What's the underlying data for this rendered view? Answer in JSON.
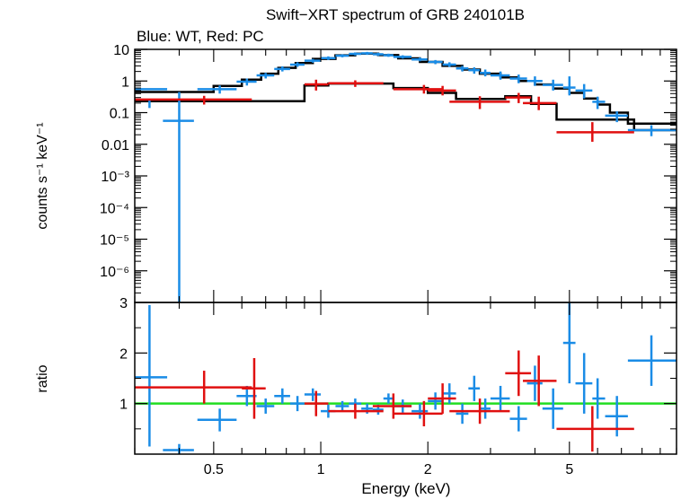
{
  "header": {
    "title": "Swift−XRT spectrum of GRB 240101B",
    "subtitle": "Blue: WT, Red: PC"
  },
  "colors": {
    "wt": "#1a8ce6",
    "pc": "#e01010",
    "model": "#000000",
    "unity": "#22dd22"
  },
  "chart_data": [
    {
      "type": "scatter",
      "panel": "spectrum",
      "xlabel": "Energy (keV)",
      "ylabel": "counts s⁻¹ keV⁻¹",
      "xscale": "log",
      "yscale": "log",
      "xlim": [
        0.3,
        10
      ],
      "ylim": [
        1e-07,
        10
      ],
      "ytick_labels": [
        "10",
        "1",
        "0.1",
        "0.01",
        "10⁻³",
        "10⁻⁴",
        "10⁻⁵",
        "10⁻⁶"
      ],
      "series": [
        {
          "name": "WT",
          "color": "#1a8ce6",
          "points": [
            [
              0.33,
              0.55,
              0.3,
              0.37,
              0.14,
              0.25
            ],
            [
              0.4,
              0.055,
              0.36,
              0.44,
              0.0,
              0.45
            ],
            [
              0.52,
              0.55,
              0.45,
              0.58,
              0.4,
              0.72
            ],
            [
              0.62,
              0.95,
              0.58,
              0.66,
              0.72,
              1.2
            ],
            [
              0.7,
              1.5,
              0.66,
              0.74,
              1.2,
              1.8
            ],
            [
              0.78,
              2.4,
              0.74,
              0.82,
              2.0,
              2.9
            ],
            [
              0.86,
              3.3,
              0.82,
              0.9,
              2.8,
              3.9
            ],
            [
              0.95,
              4.4,
              0.9,
              1.0,
              3.8,
              5.0
            ],
            [
              1.05,
              5.3,
              1.0,
              1.1,
              4.6,
              6.0
            ],
            [
              1.15,
              6.3,
              1.1,
              1.2,
              5.6,
              7.0
            ],
            [
              1.25,
              7.2,
              1.2,
              1.3,
              6.4,
              8.0
            ],
            [
              1.35,
              7.5,
              1.3,
              1.4,
              6.7,
              8.3
            ],
            [
              1.45,
              7.0,
              1.4,
              1.5,
              6.2,
              7.8
            ],
            [
              1.55,
              6.5,
              1.5,
              1.6,
              5.8,
              7.3
            ],
            [
              1.7,
              5.8,
              1.6,
              1.8,
              5.1,
              6.5
            ],
            [
              1.9,
              4.8,
              1.8,
              2.0,
              4.2,
              5.5
            ],
            [
              2.1,
              4.0,
              2.0,
              2.2,
              3.4,
              4.6
            ],
            [
              2.3,
              3.3,
              2.2,
              2.4,
              2.8,
              3.9
            ],
            [
              2.5,
              2.5,
              2.4,
              2.6,
              2.0,
              3.0
            ],
            [
              2.7,
              2.2,
              2.6,
              2.8,
              1.7,
              2.7
            ],
            [
              2.9,
              1.8,
              2.8,
              3.0,
              1.4,
              2.3
            ],
            [
              3.2,
              1.5,
              3.0,
              3.4,
              1.1,
              2.0
            ],
            [
              3.6,
              1.2,
              3.4,
              3.8,
              0.85,
              1.6
            ],
            [
              4.0,
              1.0,
              3.8,
              4.2,
              0.7,
              1.4
            ],
            [
              4.5,
              0.75,
              4.2,
              4.8,
              0.5,
              1.1
            ],
            [
              5.0,
              0.62,
              4.8,
              5.2,
              0.35,
              1.4
            ],
            [
              5.5,
              0.5,
              5.2,
              5.8,
              0.28,
              0.8
            ],
            [
              6.0,
              0.22,
              5.8,
              6.3,
              0.13,
              0.32
            ],
            [
              6.8,
              0.08,
              6.3,
              7.3,
              0.05,
              0.11
            ],
            [
              8.5,
              0.028,
              7.3,
              10.0,
              0.018,
              0.04
            ]
          ]
        },
        {
          "name": "PC",
          "color": "#e01010",
          "points": [
            [
              0.47,
              0.26,
              0.3,
              0.64,
              0.18,
              0.34
            ],
            [
              0.97,
              0.78,
              0.9,
              1.05,
              0.5,
              1.1
            ],
            [
              1.25,
              0.85,
              1.05,
              1.5,
              0.65,
              1.05
            ],
            [
              1.95,
              0.55,
              1.6,
              2.2,
              0.4,
              0.75
            ],
            [
              2.2,
              0.5,
              2.0,
              2.4,
              0.35,
              0.7
            ],
            [
              2.8,
              0.22,
              2.3,
              3.4,
              0.13,
              0.33
            ],
            [
              3.6,
              0.3,
              3.3,
              3.9,
              0.2,
              0.42
            ],
            [
              4.1,
              0.2,
              3.7,
              4.6,
              0.12,
              0.32
            ],
            [
              5.8,
              0.024,
              4.6,
              7.6,
              0.012,
              0.05
            ]
          ]
        },
        {
          "name": "model",
          "color": "#000000",
          "steps": [
            [
              0.3,
              0.45
            ],
            [
              0.5,
              0.45
            ],
            [
              0.5,
              0.7
            ],
            [
              0.6,
              0.7
            ],
            [
              0.6,
              1.1
            ],
            [
              0.68,
              1.1
            ],
            [
              0.68,
              1.7
            ],
            [
              0.76,
              1.7
            ],
            [
              0.76,
              2.6
            ],
            [
              0.85,
              2.6
            ],
            [
              0.85,
              3.7
            ],
            [
              0.95,
              3.7
            ],
            [
              0.95,
              5.0
            ],
            [
              1.1,
              5.0
            ],
            [
              1.1,
              6.5
            ],
            [
              1.25,
              6.5
            ],
            [
              1.25,
              7.3
            ],
            [
              1.45,
              7.3
            ],
            [
              1.45,
              6.6
            ],
            [
              1.65,
              6.6
            ],
            [
              1.65,
              5.2
            ],
            [
              1.9,
              5.2
            ],
            [
              1.9,
              4.0
            ],
            [
              2.2,
              4.0
            ],
            [
              2.2,
              3.0
            ],
            [
              2.5,
              3.0
            ],
            [
              2.5,
              2.3
            ],
            [
              2.8,
              2.3
            ],
            [
              2.8,
              1.7
            ],
            [
              3.2,
              1.7
            ],
            [
              3.2,
              1.3
            ],
            [
              3.6,
              1.3
            ],
            [
              3.6,
              1.0
            ],
            [
              4.0,
              1.0
            ],
            [
              4.0,
              0.78
            ],
            [
              4.5,
              0.78
            ],
            [
              4.5,
              0.58
            ],
            [
              5.0,
              0.58
            ],
            [
              5.0,
              0.42
            ],
            [
              5.5,
              0.42
            ],
            [
              5.5,
              0.28
            ],
            [
              6.0,
              0.28
            ],
            [
              6.0,
              0.18
            ],
            [
              6.5,
              0.18
            ],
            [
              6.5,
              0.1
            ],
            [
              7.3,
              0.1
            ],
            [
              7.3,
              0.045
            ],
            [
              10.0,
              0.045
            ]
          ],
          "pc_steps": [
            [
              0.3,
              0.23
            ],
            [
              0.9,
              0.23
            ],
            [
              0.9,
              0.72
            ],
            [
              1.05,
              0.72
            ],
            [
              1.05,
              0.83
            ],
            [
              1.6,
              0.83
            ],
            [
              1.6,
              0.6
            ],
            [
              2.0,
              0.6
            ],
            [
              2.0,
              0.42
            ],
            [
              2.4,
              0.42
            ],
            [
              2.4,
              0.27
            ],
            [
              3.3,
              0.27
            ],
            [
              3.3,
              0.33
            ],
            [
              3.9,
              0.33
            ],
            [
              3.9,
              0.19
            ],
            [
              4.6,
              0.19
            ],
            [
              4.6,
              0.06
            ],
            [
              7.6,
              0.06
            ],
            [
              7.6,
              0.028
            ],
            [
              10.0,
              0.028
            ]
          ]
        }
      ]
    },
    {
      "type": "scatter",
      "panel": "ratio",
      "xlabel": "Energy (keV)",
      "ylabel": "ratio",
      "xscale": "log",
      "xlim": [
        0.3,
        10
      ],
      "ylim": [
        0,
        3
      ],
      "xtick_labels": [
        "0.5",
        "1",
        "2",
        "5"
      ],
      "ytick_labels": [
        "1",
        "2",
        "3"
      ],
      "reference_line": 1,
      "series": [
        {
          "name": "WT",
          "color": "#1a8ce6",
          "points": [
            [
              0.33,
              1.52,
              0.3,
              0.37,
              0.15,
              2.95
            ],
            [
              0.4,
              0.08,
              0.36,
              0.44,
              0.0,
              0.2
            ],
            [
              0.52,
              0.68,
              0.45,
              0.58,
              0.45,
              0.9
            ],
            [
              0.62,
              1.15,
              0.58,
              0.66,
              0.95,
              1.35
            ],
            [
              0.7,
              0.95,
              0.66,
              0.74,
              0.8,
              1.1
            ],
            [
              0.78,
              1.15,
              0.74,
              0.82,
              1.0,
              1.3
            ],
            [
              0.86,
              1.0,
              0.82,
              0.9,
              0.85,
              1.15
            ],
            [
              0.95,
              1.18,
              0.9,
              1.0,
              1.05,
              1.3
            ],
            [
              1.05,
              0.85,
              1.0,
              1.1,
              0.72,
              0.98
            ],
            [
              1.15,
              0.95,
              1.1,
              1.2,
              0.85,
              1.05
            ],
            [
              1.25,
              1.0,
              1.2,
              1.3,
              0.9,
              1.1
            ],
            [
              1.35,
              0.9,
              1.3,
              1.4,
              0.8,
              1.0
            ],
            [
              1.45,
              0.88,
              1.4,
              1.5,
              0.78,
              0.98
            ],
            [
              1.55,
              1.1,
              1.5,
              1.6,
              1.0,
              1.2
            ],
            [
              1.7,
              0.95,
              1.6,
              1.8,
              0.82,
              1.08
            ],
            [
              1.9,
              0.85,
              1.8,
              2.0,
              0.7,
              1.0
            ],
            [
              2.1,
              1.05,
              2.0,
              2.2,
              0.88,
              1.22
            ],
            [
              2.3,
              1.2,
              2.2,
              2.4,
              1.0,
              1.4
            ],
            [
              2.5,
              0.8,
              2.4,
              2.6,
              0.6,
              1.0
            ],
            [
              2.7,
              1.3,
              2.6,
              2.8,
              1.05,
              1.55
            ],
            [
              2.9,
              0.9,
              2.8,
              3.0,
              0.7,
              1.1
            ],
            [
              3.2,
              1.1,
              3.0,
              3.4,
              0.85,
              1.35
            ],
            [
              3.6,
              0.7,
              3.4,
              3.8,
              0.45,
              0.95
            ],
            [
              4.0,
              1.4,
              3.8,
              4.2,
              1.05,
              1.75
            ],
            [
              4.5,
              0.9,
              4.2,
              4.8,
              0.5,
              1.3
            ],
            [
              5.0,
              2.2,
              4.8,
              5.2,
              1.4,
              3.0
            ],
            [
              5.5,
              1.4,
              5.2,
              5.8,
              0.8,
              2.0
            ],
            [
              6.0,
              1.1,
              5.8,
              6.3,
              0.7,
              1.5
            ],
            [
              6.8,
              0.75,
              6.3,
              7.3,
              0.35,
              1.15
            ],
            [
              8.5,
              1.85,
              7.3,
              10.0,
              1.35,
              2.35
            ]
          ]
        },
        {
          "name": "PC",
          "color": "#e01010",
          "points": [
            [
              0.47,
              1.32,
              0.3,
              0.64,
              1.0,
              1.65
            ],
            [
              0.65,
              1.3,
              0.6,
              0.7,
              0.7,
              1.9
            ],
            [
              0.97,
              1.0,
              0.9,
              1.05,
              0.75,
              1.25
            ],
            [
              1.25,
              0.85,
              1.05,
              1.5,
              0.7,
              1.0
            ],
            [
              1.6,
              0.95,
              1.4,
              1.8,
              0.7,
              1.2
            ],
            [
              1.95,
              0.8,
              1.6,
              2.2,
              0.55,
              1.05
            ],
            [
              2.2,
              1.1,
              2.0,
              2.4,
              0.8,
              1.4
            ],
            [
              2.8,
              0.85,
              2.3,
              3.4,
              0.6,
              1.1
            ],
            [
              3.6,
              1.6,
              3.3,
              3.9,
              1.15,
              2.05
            ],
            [
              4.1,
              1.45,
              3.7,
              4.6,
              0.95,
              1.95
            ],
            [
              5.8,
              0.5,
              4.6,
              7.6,
              0.05,
              0.95
            ]
          ]
        }
      ]
    }
  ]
}
